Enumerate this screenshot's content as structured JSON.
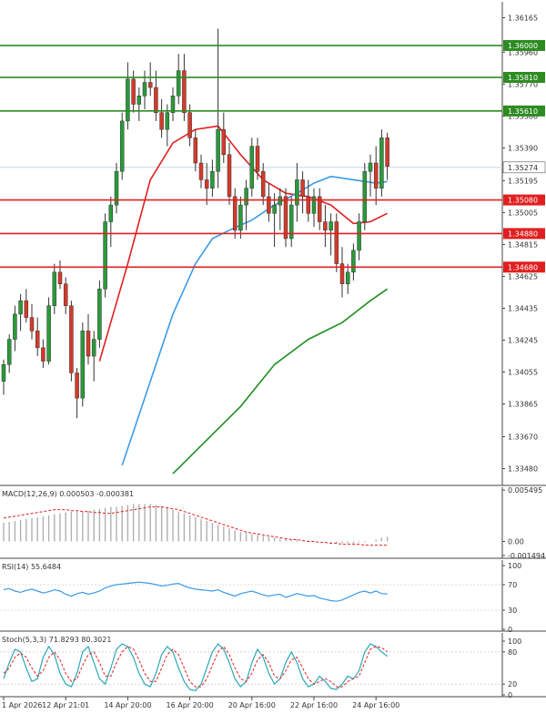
{
  "chart_data": [
    {
      "panel": "price",
      "type": "candlestick",
      "y_ticks": [
        "1.36165",
        "1.35960",
        "1.35770",
        "1.35580",
        "1.35390",
        "1.35195",
        "1.35005",
        "1.34815",
        "1.34625",
        "1.34435",
        "1.34245",
        "1.34055",
        "1.33865",
        "1.33670",
        "1.33480"
      ],
      "ylim": [
        1.3338,
        1.3626
      ],
      "current_price": {
        "label": "1.35274",
        "value": 1.35274
      },
      "levels": [
        {
          "label": "1.36000",
          "value": 1.36,
          "color": "#2e8b22"
        },
        {
          "label": "1.35810",
          "value": 1.3581,
          "color": "#2e8b22"
        },
        {
          "label": "1.35610",
          "value": 1.3561,
          "color": "#2e8b22"
        },
        {
          "label": "1.35080",
          "value": 1.3508,
          "color": "#e02020"
        },
        {
          "label": "1.34880",
          "value": 1.3488,
          "color": "#e02020"
        },
        {
          "label": "1.34680",
          "value": 1.3468,
          "color": "#e02020"
        }
      ],
      "candle_colors": {
        "up": "#2a9a3a",
        "down": "#d43a2a"
      },
      "candles": [
        [
          1.34,
          1.3413,
          1.3392,
          1.341
        ],
        [
          1.341,
          1.3428,
          1.3405,
          1.3425
        ],
        [
          1.3425,
          1.3445,
          1.3418,
          1.344
        ],
        [
          1.344,
          1.3452,
          1.343,
          1.3448
        ],
        [
          1.3448,
          1.3455,
          1.3435,
          1.3438
        ],
        [
          1.3438,
          1.3446,
          1.3425,
          1.343
        ],
        [
          1.343,
          1.3438,
          1.3415,
          1.342
        ],
        [
          1.342,
          1.3425,
          1.3408,
          1.3412
        ],
        [
          1.3412,
          1.345,
          1.341,
          1.3445
        ],
        [
          1.3445,
          1.347,
          1.344,
          1.3465
        ],
        [
          1.3465,
          1.3472,
          1.3455,
          1.3458
        ],
        [
          1.3458,
          1.3462,
          1.344,
          1.3445
        ],
        [
          1.3445,
          1.3448,
          1.34,
          1.3405
        ],
        [
          1.3405,
          1.3408,
          1.3378,
          1.339
        ],
        [
          1.339,
          1.3435,
          1.3385,
          1.343
        ],
        [
          1.343,
          1.344,
          1.341,
          1.3415
        ],
        [
          1.3415,
          1.343,
          1.34,
          1.3425
        ],
        [
          1.3425,
          1.346,
          1.342,
          1.3455
        ],
        [
          1.3455,
          1.35,
          1.345,
          1.3495
        ],
        [
          1.3495,
          1.351,
          1.348,
          1.3505
        ],
        [
          1.3505,
          1.353,
          1.35,
          1.3525
        ],
        [
          1.3525,
          1.356,
          1.352,
          1.3555
        ],
        [
          1.3555,
          1.359,
          1.355,
          1.358
        ],
        [
          1.358,
          1.3585,
          1.356,
          1.3565
        ],
        [
          1.3565,
          1.3575,
          1.3555,
          1.357
        ],
        [
          1.357,
          1.3585,
          1.3562,
          1.3578
        ],
        [
          1.3578,
          1.359,
          1.357,
          1.3575
        ],
        [
          1.3575,
          1.3585,
          1.3555,
          1.356
        ],
        [
          1.356,
          1.3568,
          1.3545,
          1.355
        ],
        [
          1.355,
          1.3565,
          1.354,
          1.356
        ],
        [
          1.356,
          1.3575,
          1.3555,
          1.357
        ],
        [
          1.357,
          1.3595,
          1.3565,
          1.3585
        ],
        [
          1.3585,
          1.3595,
          1.3555,
          1.356
        ],
        [
          1.356,
          1.3565,
          1.354,
          1.3545
        ],
        [
          1.3545,
          1.355,
          1.3525,
          1.353
        ],
        [
          1.353,
          1.3535,
          1.3515,
          1.352
        ],
        [
          1.352,
          1.353,
          1.3505,
          1.3515
        ],
        [
          1.3515,
          1.3532,
          1.351,
          1.3525
        ],
        [
          1.3525,
          1.361,
          1.3515,
          1.355
        ],
        [
          1.355,
          1.356,
          1.353,
          1.3535
        ],
        [
          1.3535,
          1.3542,
          1.3505,
          1.351
        ],
        [
          1.351,
          1.3515,
          1.3485,
          1.349
        ],
        [
          1.349,
          1.351,
          1.3485,
          1.3505
        ],
        [
          1.3505,
          1.352,
          1.349,
          1.3515
        ],
        [
          1.3515,
          1.3545,
          1.351,
          1.354
        ],
        [
          1.354,
          1.3545,
          1.352,
          1.3525
        ],
        [
          1.3525,
          1.353,
          1.3505,
          1.351
        ],
        [
          1.351,
          1.3518,
          1.3495,
          1.35
        ],
        [
          1.35,
          1.3512,
          1.348,
          1.3505
        ],
        [
          1.3505,
          1.3515,
          1.349,
          1.351
        ],
        [
          1.351,
          1.3515,
          1.348,
          1.3485
        ],
        [
          1.3485,
          1.351,
          1.348,
          1.3505
        ],
        [
          1.3505,
          1.353,
          1.3495,
          1.352
        ],
        [
          1.352,
          1.3525,
          1.35,
          1.351
        ],
        [
          1.351,
          1.352,
          1.3495,
          1.35
        ],
        [
          1.35,
          1.3515,
          1.3492,
          1.351
        ],
        [
          1.351,
          1.3515,
          1.349,
          1.3495
        ],
        [
          1.3495,
          1.3505,
          1.348,
          1.349
        ],
        [
          1.349,
          1.35,
          1.3475,
          1.3495
        ],
        [
          1.3495,
          1.35,
          1.3465,
          1.347
        ],
        [
          1.347,
          1.348,
          1.345,
          1.3458
        ],
        [
          1.3458,
          1.347,
          1.3452,
          1.3465
        ],
        [
          1.3465,
          1.3482,
          1.346,
          1.3478
        ],
        [
          1.3478,
          1.35,
          1.3472,
          1.3495
        ],
        [
          1.3495,
          1.353,
          1.349,
          1.3525
        ],
        [
          1.3525,
          1.3535,
          1.351,
          1.353
        ],
        [
          1.353,
          1.354,
          1.3505,
          1.3515
        ],
        [
          1.3515,
          1.355,
          1.351,
          1.3545
        ],
        [
          1.3545,
          1.3548,
          1.352,
          1.3528
        ]
      ],
      "moving_averages": [
        {
          "color": "#e02020",
          "points": [
            [
              17,
              1.3412
            ],
            [
              22,
              1.347
            ],
            [
              26,
              1.352
            ],
            [
              30,
              1.3542
            ],
            [
              34,
              1.355
            ],
            [
              38,
              1.3552
            ],
            [
              42,
              1.3535
            ],
            [
              46,
              1.352
            ],
            [
              50,
              1.3512
            ],
            [
              54,
              1.351
            ],
            [
              58,
              1.3505
            ],
            [
              62,
              1.3494
            ],
            [
              65,
              1.3495
            ],
            [
              68,
              1.35
            ]
          ]
        },
        {
          "color": "#3a9ae8",
          "points": [
            [
              21,
              1.335
            ],
            [
              26,
              1.34
            ],
            [
              30,
              1.344
            ],
            [
              34,
              1.347
            ],
            [
              37,
              1.3485
            ],
            [
              40,
              1.349
            ],
            [
              44,
              1.3496
            ],
            [
              48,
              1.3505
            ],
            [
              52,
              1.3512
            ],
            [
              55,
              1.3518
            ],
            [
              58,
              1.3522
            ],
            [
              62,
              1.352
            ],
            [
              66,
              1.3518
            ],
            [
              68,
              1.3519
            ]
          ]
        },
        {
          "color": "#1f8f1f",
          "points": [
            [
              30,
              1.3345
            ],
            [
              36,
              1.3365
            ],
            [
              42,
              1.3385
            ],
            [
              48,
              1.341
            ],
            [
              54,
              1.3425
            ],
            [
              60,
              1.3435
            ],
            [
              65,
              1.3448
            ],
            [
              68,
              1.3455
            ]
          ]
        }
      ]
    },
    {
      "panel": "macd",
      "type": "bar",
      "label": "MACD(12,26,9) 0.000503 -0.000381",
      "y_ticks": [
        "0.005495",
        "0.00",
        "-0.001494"
      ],
      "ylim": [
        -0.0018,
        0.0058
      ],
      "histogram": [
        0.002,
        0.0021,
        0.0022,
        0.0023,
        0.0024,
        0.0025,
        0.0026,
        0.0027,
        0.0028,
        0.0029,
        0.003,
        0.0031,
        0.0032,
        0.0032,
        0.0032,
        0.0033,
        0.0034,
        0.0035,
        0.0036,
        0.0037,
        0.0037,
        0.0038,
        0.0039,
        0.004,
        0.004,
        0.004,
        0.004,
        0.0039,
        0.0038,
        0.0036,
        0.0034,
        0.0032,
        0.003,
        0.0028,
        0.0026,
        0.0024,
        0.0022,
        0.002,
        0.0018,
        0.0016,
        0.0014,
        0.0012,
        0.001,
        0.0009,
        0.0008,
        0.0007,
        0.0006,
        0.0005,
        0.0004,
        0.0003,
        0.0003,
        0.0002,
        0.0002,
        0.0001,
        0.0001,
        0.0,
        0.0,
        -0.0001,
        -0.0001,
        -0.0002,
        -0.0002,
        -0.0002,
        -0.0002,
        -0.0001,
        -0.0001,
        0.0,
        0.0002,
        0.0004,
        0.0005
      ],
      "signal": [
        0.0025,
        0.0026,
        0.0027,
        0.0028,
        0.0029,
        0.003,
        0.0031,
        0.0032,
        0.0033,
        0.0034,
        0.0034,
        0.0034,
        0.0033,
        0.0033,
        0.0032,
        0.0032,
        0.0031,
        0.0031,
        0.003,
        0.003,
        0.0031,
        0.0032,
        0.0033,
        0.0034,
        0.0035,
        0.0036,
        0.0037,
        0.0037,
        0.0037,
        0.0036,
        0.0035,
        0.0034,
        0.0032,
        0.003,
        0.0028,
        0.0026,
        0.0024,
        0.0022,
        0.002,
        0.0018,
        0.0016,
        0.0014,
        0.0012,
        0.001,
        0.0009,
        0.0008,
        0.0007,
        0.0006,
        0.0005,
        0.0004,
        0.0003,
        0.0002,
        0.0002,
        0.0001,
        0.0,
        0.0,
        -0.0001,
        -0.0001,
        -0.0002,
        -0.0002,
        -0.0003,
        -0.0003,
        -0.0003,
        -0.0003,
        -0.0004,
        -0.0004,
        -0.0004,
        -0.0004,
        -0.0004
      ]
    },
    {
      "panel": "rsi",
      "type": "line",
      "label": "RSI(14) 55.6484",
      "y_ticks": [
        "100",
        "70",
        "30",
        "0"
      ],
      "ylim": [
        0,
        100
      ],
      "levels": [
        70,
        30
      ],
      "values": [
        62,
        64,
        60,
        58,
        61,
        63,
        60,
        57,
        59,
        62,
        60,
        55,
        52,
        56,
        58,
        55,
        57,
        60,
        65,
        68,
        70,
        71,
        72,
        73,
        74,
        73,
        72,
        70,
        68,
        69,
        71,
        72,
        68,
        65,
        63,
        62,
        61,
        60,
        62,
        58,
        55,
        52,
        56,
        58,
        60,
        57,
        54,
        52,
        54,
        55,
        50,
        53,
        56,
        54,
        52,
        53,
        49,
        47,
        45,
        44,
        46,
        50,
        54,
        58,
        60,
        57,
        60,
        56,
        55.6
      ]
    },
    {
      "panel": "stochastic",
      "type": "line",
      "label": "Stoch(5,3,3) 71.8293 80.3021",
      "y_ticks": [
        "100",
        "80",
        "20",
        "0"
      ],
      "ylim": [
        0,
        100
      ],
      "levels": [
        80,
        20
      ],
      "k": [
        30,
        60,
        85,
        80,
        50,
        25,
        30,
        70,
        90,
        75,
        40,
        20,
        15,
        40,
        80,
        90,
        60,
        30,
        20,
        50,
        85,
        95,
        90,
        70,
        40,
        20,
        15,
        40,
        75,
        90,
        80,
        50,
        25,
        10,
        8,
        20,
        50,
        80,
        95,
        85,
        60,
        30,
        15,
        25,
        60,
        85,
        70,
        40,
        20,
        30,
        60,
        80,
        60,
        30,
        15,
        20,
        35,
        25,
        12,
        10,
        20,
        35,
        30,
        45,
        80,
        95,
        90,
        80,
        71.8
      ],
      "d": [
        40,
        50,
        70,
        78,
        70,
        50,
        35,
        45,
        70,
        80,
        65,
        40,
        25,
        30,
        55,
        75,
        80,
        60,
        35,
        35,
        60,
        80,
        90,
        85,
        65,
        40,
        25,
        25,
        50,
        75,
        85,
        75,
        50,
        25,
        15,
        15,
        30,
        55,
        80,
        90,
        75,
        50,
        30,
        25,
        40,
        65,
        75,
        60,
        35,
        30,
        45,
        65,
        70,
        50,
        30,
        20,
        25,
        30,
        25,
        15,
        15,
        25,
        30,
        35,
        60,
        85,
        90,
        88,
        80.3
      ]
    }
  ],
  "x_labels": [
    {
      "text": "1 Apr 2026",
      "index": 0
    },
    {
      "text": "12 Apr 21:01",
      "index": 11
    },
    {
      "text": "14 Apr 20:00",
      "index": 22
    },
    {
      "text": "16 Apr 20:00",
      "index": 33
    },
    {
      "text": "20 Apr 16:00",
      "index": 44
    },
    {
      "text": "22 Apr 16:00",
      "index": 55
    },
    {
      "text": "24 Apr 16:00",
      "index": 66
    }
  ]
}
